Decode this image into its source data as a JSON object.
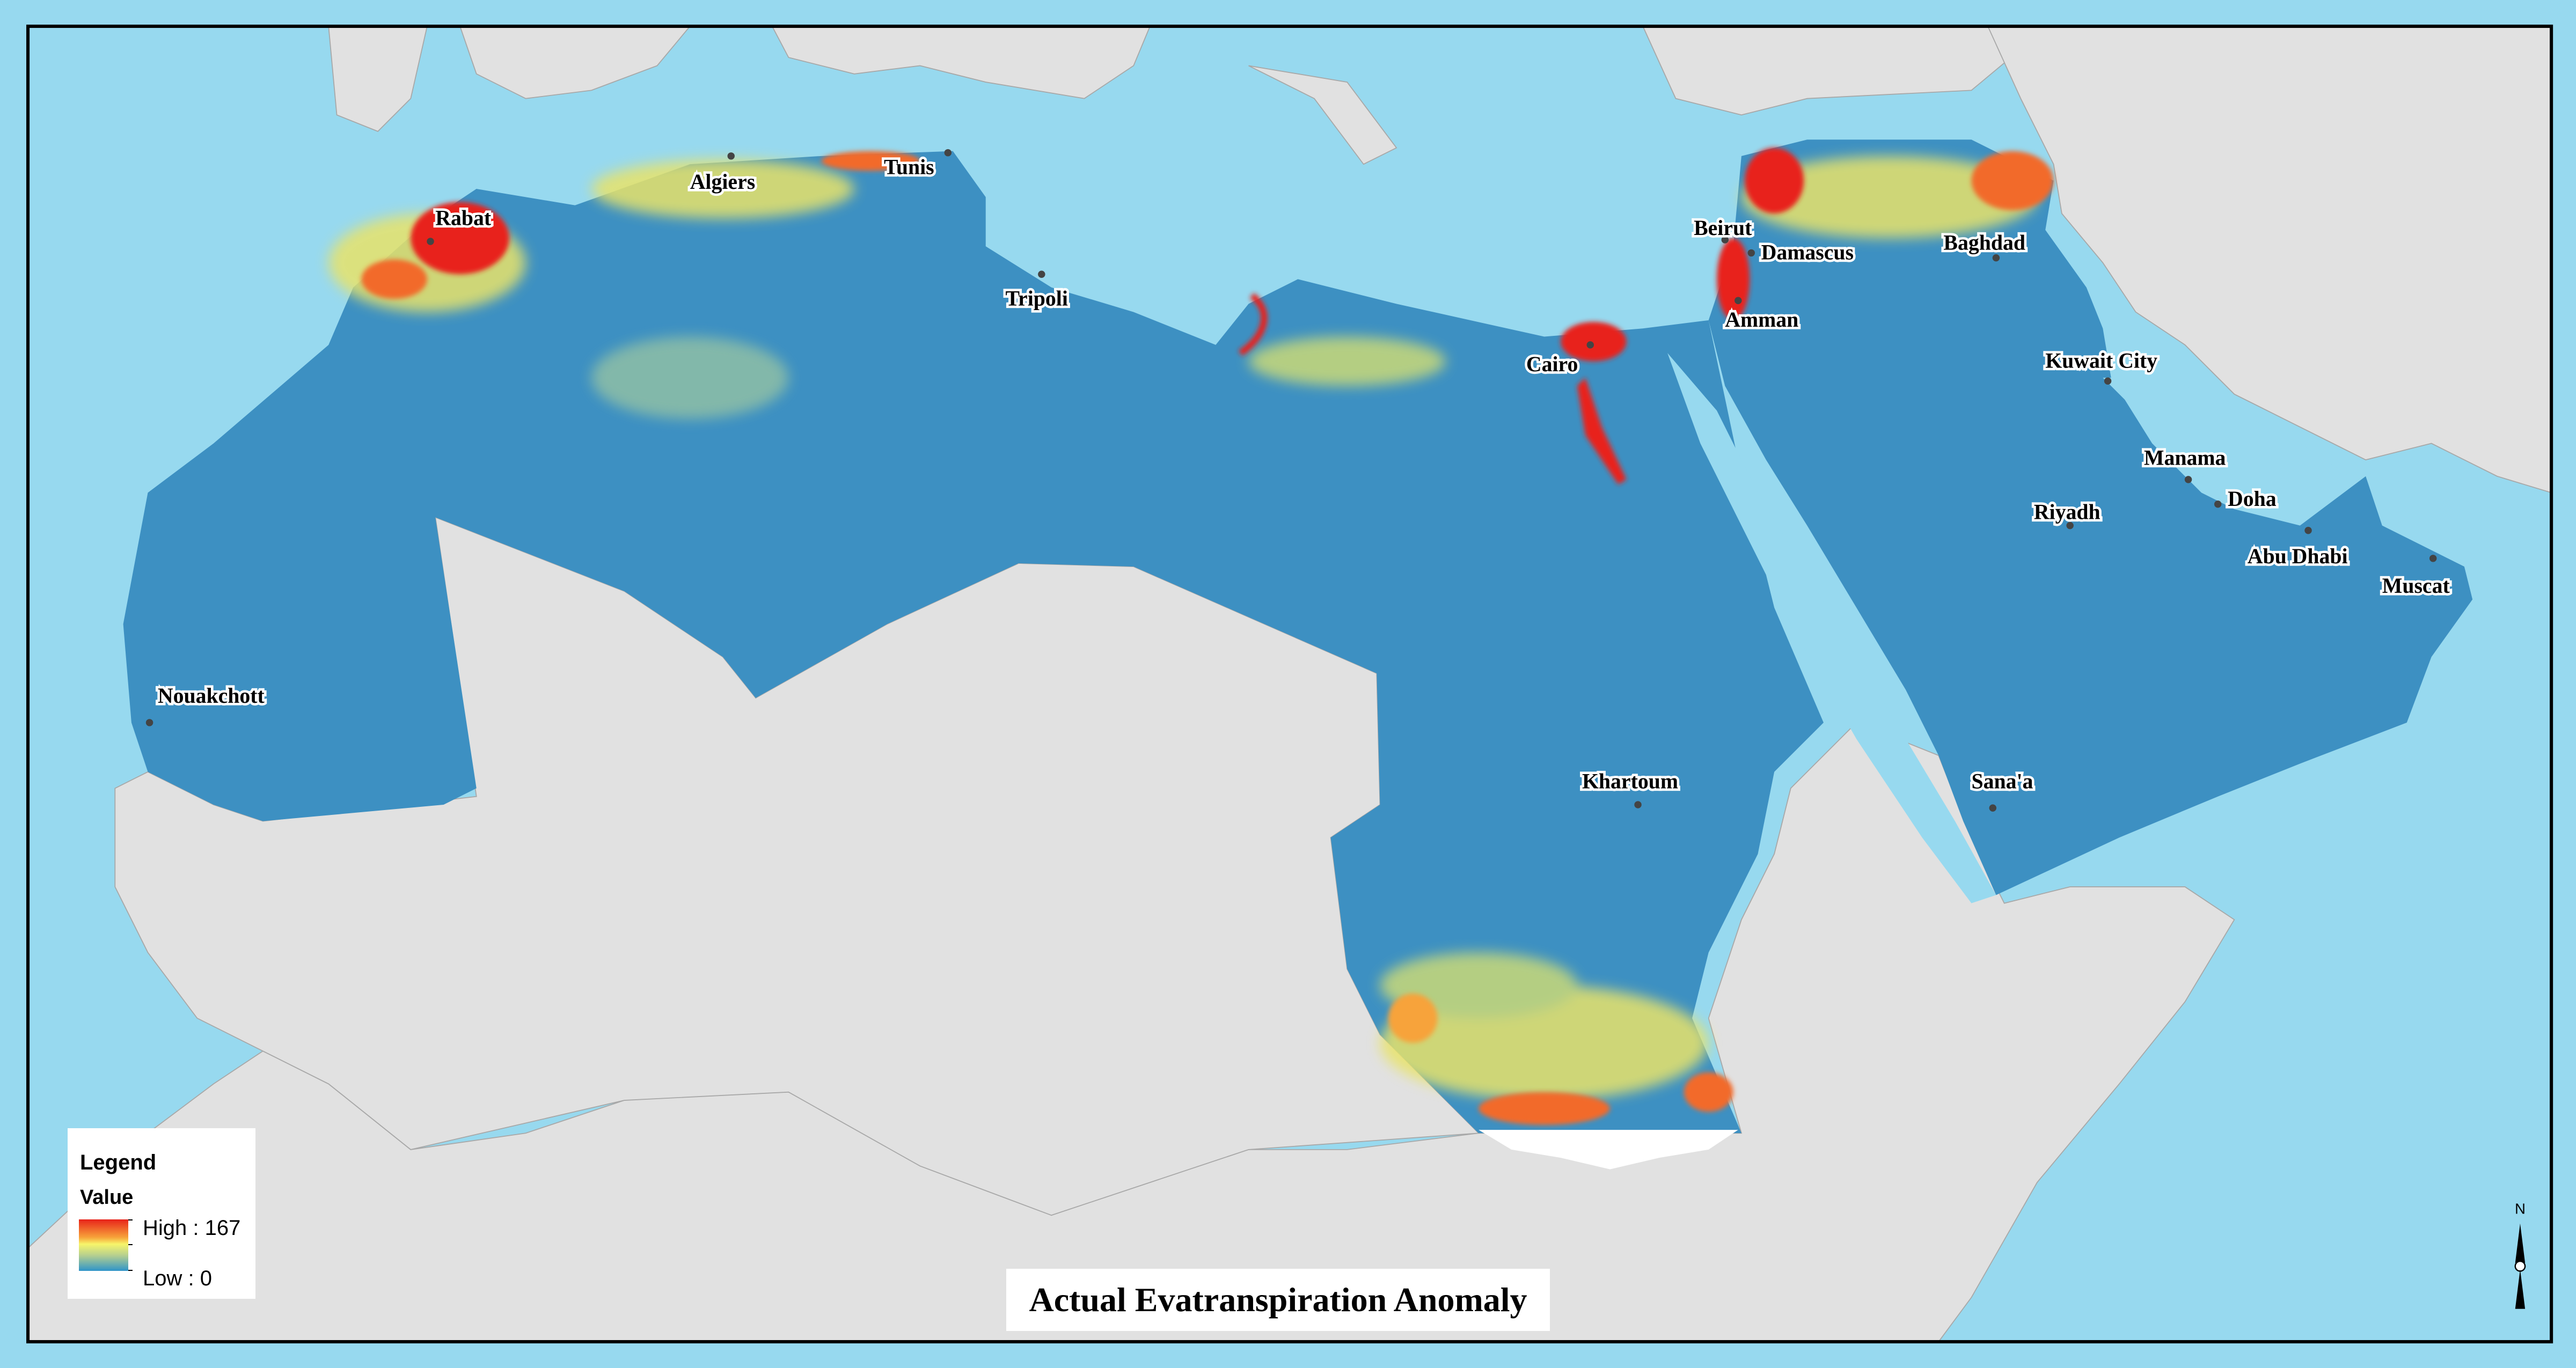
{
  "title": "Actual Evatranspiration Anomaly",
  "legend": {
    "title": "Legend",
    "field": "Value",
    "high_label": "High : 167",
    "low_label": "Low : 0",
    "high_value": 167,
    "low_value": 0,
    "colors": [
      "#e8231a",
      "#f7a33a",
      "#f7f56a",
      "#b5cf8f",
      "#2f94c9"
    ]
  },
  "north_arrow": {
    "label": "N"
  },
  "colors": {
    "sea": "#97d9ef",
    "land": "#e1e1e1",
    "region_base": "#3d90c2",
    "border": "#9a9a9a"
  },
  "cities": [
    {
      "name": "Rabat"
    },
    {
      "name": "Algiers"
    },
    {
      "name": "Tunis"
    },
    {
      "name": "Tripoli"
    },
    {
      "name": "Cairo"
    },
    {
      "name": "Beirut"
    },
    {
      "name": "Damascus"
    },
    {
      "name": "Amman"
    },
    {
      "name": "Baghdad"
    },
    {
      "name": "Kuwait City"
    },
    {
      "name": "Manama"
    },
    {
      "name": "Doha"
    },
    {
      "name": "Riyadh"
    },
    {
      "name": "Abu Dhabi"
    },
    {
      "name": "Muscat"
    },
    {
      "name": "Sana'a"
    },
    {
      "name": "Khartoum"
    },
    {
      "name": "Nouakchott"
    }
  ]
}
